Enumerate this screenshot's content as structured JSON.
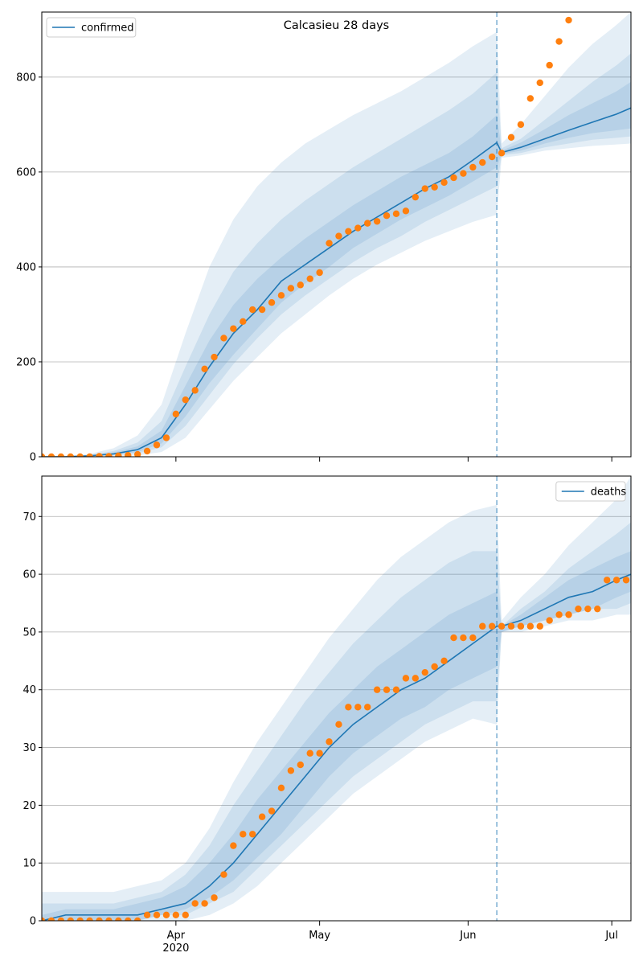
{
  "chart_data": [
    {
      "type": "line",
      "title": "Calcasieu 28 days",
      "x": [
        0,
        5,
        10,
        15,
        20,
        25,
        30,
        35,
        40,
        45,
        50,
        55,
        60,
        65,
        70,
        75,
        80,
        85,
        90,
        95,
        96,
        100,
        105,
        110,
        115,
        120,
        123
      ],
      "series": [
        {
          "name": "confirmed",
          "color": "#1f77b4",
          "values": [
            0,
            0,
            2,
            6,
            15,
            40,
            110,
            190,
            260,
            310,
            370,
            405,
            440,
            475,
            505,
            535,
            565,
            590,
            625,
            662,
            641,
            652,
            670,
            688,
            705,
            722,
            735
          ]
        }
      ],
      "bands": [
        {
          "lower": [
            0,
            0,
            0,
            1,
            3,
            10,
            40,
            100,
            160,
            210,
            260,
            300,
            340,
            375,
            405,
            430,
            455,
            475,
            495,
            510,
            630,
            635,
            645,
            650,
            655,
            658,
            660
          ],
          "upper": [
            1,
            2,
            6,
            18,
            45,
            110,
            260,
            400,
            500,
            570,
            620,
            660,
            690,
            720,
            745,
            770,
            800,
            830,
            865,
            895,
            660,
            700,
            760,
            820,
            870,
            910,
            937
          ]
        },
        {
          "lower": [
            0,
            0,
            1,
            3,
            7,
            20,
            65,
            130,
            195,
            250,
            300,
            340,
            375,
            410,
            440,
            465,
            495,
            520,
            545,
            570,
            635,
            640,
            652,
            660,
            668,
            672,
            675
          ],
          "upper": [
            0,
            1,
            4,
            12,
            30,
            75,
            190,
            300,
            390,
            450,
            500,
            540,
            575,
            610,
            640,
            670,
            700,
            730,
            765,
            810,
            650,
            670,
            710,
            750,
            790,
            825,
            850
          ]
        },
        {
          "lower": [
            0,
            0,
            1,
            4,
            10,
            28,
            85,
            155,
            215,
            270,
            325,
            365,
            400,
            440,
            470,
            500,
            525,
            550,
            580,
            610,
            638,
            645,
            660,
            672,
            682,
            688,
            692
          ],
          "upper": [
            0,
            1,
            3,
            9,
            22,
            55,
            150,
            245,
            320,
            375,
            420,
            460,
            495,
            530,
            560,
            590,
            615,
            640,
            675,
            720,
            645,
            662,
            690,
            720,
            745,
            770,
            790
          ]
        }
      ],
      "band_color": "#1f77b4",
      "observed": {
        "color": "#ff7f0e",
        "x": [
          0,
          2,
          4,
          6,
          8,
          10,
          12,
          14,
          16,
          18,
          20,
          22,
          24,
          26,
          28,
          30,
          32,
          34,
          36,
          38,
          40,
          42,
          44,
          46,
          48,
          50,
          52,
          54,
          56,
          58,
          60,
          62,
          64,
          66,
          68,
          70,
          72,
          74,
          76,
          78,
          80,
          82,
          84,
          86,
          88,
          90,
          92,
          94,
          96,
          98,
          100,
          102,
          104,
          106,
          108,
          110
        ],
        "values": [
          0,
          0,
          0,
          0,
          0,
          0,
          1,
          1,
          2,
          3,
          5,
          12,
          25,
          40,
          90,
          120,
          140,
          185,
          210,
          250,
          270,
          285,
          310,
          310,
          325,
          340,
          355,
          362,
          375,
          388,
          450,
          465,
          475,
          482,
          492,
          496,
          508,
          512,
          518,
          547,
          565,
          568,
          578,
          588,
          597,
          610,
          620,
          632,
          640,
          673,
          700,
          755,
          788,
          825,
          875,
          920
        ]
      },
      "vline_x": 95,
      "vline_color": "#1f77b4",
      "xlim": [
        0,
        123
      ],
      "xticks": [
        28,
        58,
        89,
        119
      ],
      "xtick_labels": false,
      "ylim": [
        0,
        937
      ],
      "yticks": [
        0,
        200,
        400,
        600,
        800
      ],
      "grid": true,
      "legend": "upper left"
    },
    {
      "type": "line",
      "x": [
        0,
        5,
        10,
        15,
        20,
        25,
        30,
        35,
        40,
        45,
        50,
        55,
        60,
        65,
        70,
        75,
        80,
        85,
        90,
        95,
        96,
        100,
        105,
        110,
        115,
        120,
        123
      ],
      "series": [
        {
          "name": "deaths",
          "color": "#1f77b4",
          "values": [
            0,
            1,
            1,
            1,
            1,
            2,
            3,
            6,
            10,
            15,
            20,
            25,
            30,
            34,
            37,
            40,
            42,
            45,
            48,
            51,
            51,
            52,
            54,
            56,
            57,
            59,
            60
          ]
        }
      ],
      "bands": [
        {
          "lower": [
            0,
            0,
            0,
            0,
            0,
            0,
            0,
            1,
            3,
            6,
            10,
            14,
            18,
            22,
            25,
            28,
            31,
            33,
            35,
            34,
            50,
            50,
            51,
            52,
            52,
            53,
            53
          ],
          "upper": [
            5,
            5,
            5,
            5,
            6,
            7,
            10,
            16,
            24,
            31,
            37,
            43,
            49,
            54,
            59,
            63,
            66,
            69,
            71,
            72,
            52,
            56,
            60,
            65,
            69,
            73,
            77
          ]
        },
        {
          "lower": [
            0,
            0,
            0,
            0,
            0,
            1,
            1,
            3,
            5,
            9,
            13,
            17,
            21,
            25,
            28,
            31,
            34,
            36,
            38,
            38,
            50,
            51,
            52,
            53,
            54,
            54,
            55
          ],
          "upper": [
            3,
            3,
            3,
            3,
            4,
            5,
            8,
            13,
            20,
            26,
            32,
            38,
            43,
            48,
            52,
            56,
            59,
            62,
            64,
            64,
            51,
            54,
            57,
            61,
            64,
            67,
            69
          ]
        },
        {
          "lower": [
            0,
            0,
            0,
            0,
            0,
            1,
            2,
            4,
            7,
            11,
            15,
            20,
            25,
            29,
            32,
            35,
            37,
            40,
            42,
            44,
            50,
            51,
            52,
            53,
            54,
            56,
            57
          ],
          "upper": [
            1,
            2,
            2,
            2,
            3,
            4,
            6,
            10,
            15,
            21,
            26,
            31,
            36,
            40,
            44,
            47,
            50,
            53,
            55,
            57,
            51,
            53,
            56,
            59,
            61,
            63,
            64
          ]
        }
      ],
      "band_color": "#1f77b4",
      "observed": {
        "color": "#ff7f0e",
        "x": [
          0,
          2,
          4,
          6,
          8,
          10,
          12,
          14,
          16,
          18,
          20,
          22,
          24,
          26,
          28,
          30,
          32,
          34,
          36,
          38,
          40,
          42,
          44,
          46,
          48,
          50,
          52,
          54,
          56,
          58,
          60,
          62,
          64,
          66,
          68,
          70,
          72,
          74,
          76,
          78,
          80,
          82,
          84,
          86,
          88,
          90,
          92,
          94,
          96,
          98,
          100,
          102,
          104,
          106,
          108,
          110,
          112,
          114,
          116,
          118,
          120,
          122
        ],
        "values": [
          0,
          0,
          0,
          0,
          0,
          0,
          0,
          0,
          0,
          0,
          0,
          1,
          1,
          1,
          1,
          1,
          3,
          3,
          4,
          8,
          13,
          15,
          15,
          18,
          19,
          23,
          26,
          27,
          29,
          29,
          31,
          34,
          37,
          37,
          37,
          40,
          40,
          40,
          42,
          42,
          43,
          44,
          45,
          49,
          49,
          49,
          51,
          51,
          51,
          51,
          51,
          51,
          51,
          52,
          53,
          53,
          54,
          54,
          54,
          59,
          59,
          59
        ]
      },
      "vline_x": 95,
      "vline_color": "#1f77b4",
      "xlim": [
        0,
        123
      ],
      "xticks": [
        {
          "value": 28,
          "label": "Apr"
        },
        {
          "value": 58,
          "label": "May"
        },
        {
          "value": 89,
          "label": "Jun"
        },
        {
          "value": 119,
          "label": "Jul"
        }
      ],
      "xtick_labels": true,
      "year_label": "2020",
      "ylim": [
        0,
        77
      ],
      "yticks": [
        0,
        10,
        20,
        30,
        40,
        50,
        60,
        70
      ],
      "grid": true,
      "legend": "upper right"
    }
  ]
}
